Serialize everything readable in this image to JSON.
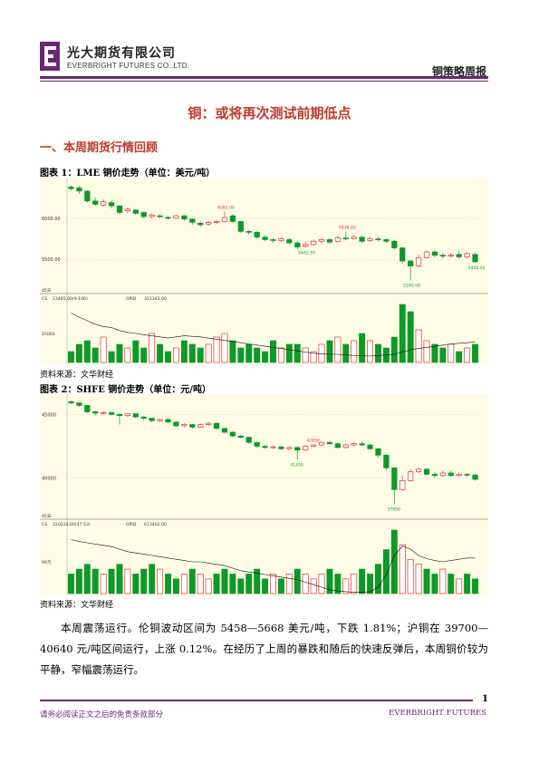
{
  "header": {
    "brand_cn": "光大期货有限公司",
    "brand_en": "EVERBRIGHT FUTURES CO.,LTD.",
    "report_name": "铜策略周报",
    "logo_letter": "E"
  },
  "title": "铜：或将再次测试前期低点",
  "section_heading": "一、本周期货行情回顾",
  "figure1": {
    "title": "图表 1：LME 铜价走势（单位：美元/吨）",
    "source": "资料来源：文华财经"
  },
  "figure2": {
    "title": "图表 2：SHFE 铜价走势（单位：元/吨）",
    "source": "资料来源：文华财经"
  },
  "chart_data": [
    {
      "type": "candlestick",
      "y_ticks": [
        6000.0,
        5500.0
      ],
      "ylim": [
        5150,
        6450
      ],
      "annotations": [
        {
          "label": "6083.00",
          "value": 6083
        },
        {
          "label": "5642.55",
          "value": 5642.55
        },
        {
          "label": "5838.00",
          "value": 5838
        },
        {
          "label": "5245.00",
          "value": 5245
        },
        {
          "label": "5458.00",
          "value": 5458
        }
      ],
      "candles": [
        [
          6380,
          6360,
          6400,
          6340
        ],
        [
          6370,
          6330,
          6390,
          6300
        ],
        [
          6330,
          6210,
          6340,
          6190
        ],
        [
          6210,
          6170,
          6250,
          6150
        ],
        [
          6160,
          6200,
          6230,
          6140
        ],
        [
          6190,
          6150,
          6220,
          6120
        ],
        [
          6150,
          6070,
          6160,
          6050
        ],
        [
          6090,
          6110,
          6130,
          6060
        ],
        [
          6100,
          6060,
          6110,
          6040
        ],
        [
          6070,
          6020,
          6080,
          6000
        ],
        [
          6020,
          6040,
          6060,
          6000
        ],
        [
          6030,
          6020,
          6050,
          6000
        ],
        [
          6010,
          6000,
          6030,
          5980
        ],
        [
          6000,
          6030,
          6040,
          5990
        ],
        [
          6030,
          5990,
          6040,
          5970
        ],
        [
          5990,
          5950,
          6000,
          5920
        ],
        [
          5940,
          5920,
          5960,
          5900
        ],
        [
          5930,
          5950,
          5970,
          5910
        ],
        [
          5950,
          5960,
          5980,
          5930
        ],
        [
          5960,
          6010,
          6083,
          5950
        ],
        [
          6030,
          5960,
          6050,
          5940
        ],
        [
          5960,
          5840,
          5970,
          5820
        ],
        [
          5840,
          5830,
          5860,
          5800
        ],
        [
          5830,
          5770,
          5840,
          5750
        ],
        [
          5770,
          5740,
          5790,
          5720
        ],
        [
          5740,
          5730,
          5760,
          5700
        ],
        [
          5730,
          5750,
          5770,
          5710
        ],
        [
          5740,
          5700,
          5760,
          5680
        ],
        [
          5700,
          5650,
          5720,
          5620
        ],
        [
          5660,
          5680,
          5720,
          5642.55
        ],
        [
          5680,
          5720,
          5740,
          5670
        ],
        [
          5720,
          5740,
          5760,
          5700
        ],
        [
          5740,
          5710,
          5760,
          5690
        ],
        [
          5720,
          5760,
          5790,
          5710
        ],
        [
          5760,
          5750,
          5838,
          5730
        ],
        [
          5750,
          5770,
          5800,
          5740
        ],
        [
          5770,
          5720,
          5790,
          5700
        ],
        [
          5730,
          5750,
          5770,
          5710
        ],
        [
          5750,
          5740,
          5770,
          5720
        ],
        [
          5740,
          5720,
          5760,
          5700
        ],
        [
          5720,
          5640,
          5740,
          5620
        ],
        [
          5640,
          5480,
          5650,
          5450
        ],
        [
          5480,
          5420,
          5500,
          5245
        ],
        [
          5420,
          5520,
          5560,
          5400
        ],
        [
          5520,
          5590,
          5610,
          5510
        ],
        [
          5590,
          5550,
          5610,
          5520
        ],
        [
          5550,
          5540,
          5580,
          5510
        ],
        [
          5540,
          5550,
          5580,
          5520
        ],
        [
          5560,
          5530,
          5600,
          5510
        ],
        [
          5530,
          5570,
          5590,
          5510
        ],
        [
          5560,
          5470,
          5580,
          5458
        ]
      ],
      "sub_labels": {
        "period": "45天",
        "cs": "CS",
        "cs_value": "13485.00(9:106)",
        "opid": "OPID",
        "opid_value": "311343.00"
      },
      "volume_tick": "25000",
      "volume": [
        0.3,
        0.5,
        0.6,
        0.4,
        0.7,
        0.3,
        0.5,
        0.4,
        0.6,
        0.4,
        0.8,
        0.5,
        0.3,
        0.4,
        0.6,
        0.5,
        0.4,
        0.5,
        0.7,
        0.8,
        0.6,
        0.4,
        0.5,
        0.4,
        0.3,
        0.6,
        0.4,
        0.5,
        0.5,
        0.4,
        0.3,
        0.5,
        0.6,
        0.7,
        0.5,
        0.6,
        0.8,
        0.6,
        0.5,
        0.4,
        0.7,
        1.6,
        1.4,
        0.9,
        0.6,
        0.5,
        0.4,
        0.5,
        0.3,
        0.4,
        0.5
      ],
      "oi_line": [
        0.85,
        0.78,
        0.72,
        0.66,
        0.62,
        0.6,
        0.55,
        0.52,
        0.5,
        0.48,
        0.46,
        0.44,
        0.42,
        0.44,
        0.46,
        0.45,
        0.44,
        0.42,
        0.4,
        0.38,
        0.36,
        0.34,
        0.32,
        0.3,
        0.28,
        0.26,
        0.24,
        0.22,
        0.2,
        0.18,
        0.16,
        0.15,
        0.14,
        0.14,
        0.13,
        0.12,
        0.12,
        0.11,
        0.12,
        0.13,
        0.14,
        0.18,
        0.22,
        0.24,
        0.26,
        0.28,
        0.3,
        0.32,
        0.33,
        0.34,
        0.35
      ]
    },
    {
      "type": "candlestick",
      "y_ticks": [
        45000,
        40000
      ],
      "ylim": [
        37200,
        46300
      ],
      "annotations": [
        {
          "label": "42650",
          "value": 42650
        },
        {
          "label": "41430",
          "value": 41430
        },
        {
          "label": "37950",
          "value": 37950
        }
      ],
      "candles": [
        [
          46000,
          45900,
          46100,
          45800
        ],
        [
          45900,
          45700,
          45950,
          45600
        ],
        [
          45700,
          45200,
          45750,
          45100
        ],
        [
          45200,
          45100,
          45300,
          44900
        ],
        [
          45100,
          45150,
          45250,
          45000
        ],
        [
          45150,
          45000,
          45200,
          44900
        ],
        [
          45000,
          44900,
          45100,
          44200
        ],
        [
          44900,
          45050,
          45100,
          44800
        ],
        [
          45050,
          44800,
          45100,
          44700
        ],
        [
          44800,
          44700,
          44850,
          44500
        ],
        [
          44700,
          44500,
          44750,
          44400
        ],
        [
          44500,
          44600,
          44650,
          44400
        ],
        [
          44600,
          44400,
          44700,
          44300
        ],
        [
          44400,
          44100,
          44450,
          44000
        ],
        [
          44100,
          44200,
          44300,
          44000
        ],
        [
          44200,
          44000,
          44250,
          43900
        ],
        [
          44000,
          44200,
          44300,
          43950
        ],
        [
          44200,
          44300,
          44400,
          44100
        ],
        [
          44300,
          43900,
          44350,
          43800
        ],
        [
          43900,
          43600,
          43950,
          43500
        ],
        [
          43600,
          43300,
          43650,
          43200
        ],
        [
          43300,
          43200,
          43400,
          43100
        ],
        [
          43200,
          42800,
          43250,
          42700
        ],
        [
          42800,
          42500,
          42850,
          42400
        ],
        [
          42500,
          42400,
          42600,
          42300
        ],
        [
          42400,
          42450,
          42550,
          42300
        ],
        [
          42450,
          42300,
          42550,
          42200
        ],
        [
          42300,
          42400,
          42500,
          42200
        ],
        [
          42400,
          42200,
          42500,
          41430
        ],
        [
          42200,
          42500,
          42600,
          42100
        ],
        [
          42500,
          42600,
          42650,
          42450
        ],
        [
          42600,
          42800,
          42900,
          42500
        ],
        [
          42800,
          42700,
          42900,
          42600
        ],
        [
          42700,
          42400,
          42800,
          42300
        ],
        [
          42400,
          42600,
          42700,
          42300
        ],
        [
          42600,
          42700,
          42800,
          42500
        ],
        [
          42700,
          42600,
          42850,
          42500
        ],
        [
          42600,
          42300,
          42700,
          42200
        ],
        [
          42300,
          41800,
          42400,
          41600
        ],
        [
          41800,
          40800,
          41900,
          40600
        ],
        [
          40800,
          39100,
          40900,
          37950
        ],
        [
          39100,
          39800,
          40200,
          39000
        ],
        [
          39800,
          40500,
          40700,
          39700
        ],
        [
          40500,
          40700,
          40800,
          40400
        ],
        [
          40700,
          40300,
          40800,
          40200
        ],
        [
          40300,
          40200,
          40500,
          40000
        ],
        [
          40200,
          40400,
          40600,
          40100
        ],
        [
          40400,
          40200,
          40600,
          40100
        ],
        [
          40200,
          40300,
          40500,
          40100
        ],
        [
          40300,
          40250,
          40400,
          40100
        ],
        [
          40250,
          39900,
          40300,
          39800
        ]
      ],
      "sub_labels": {
        "period": "45天",
        "cs": "CS",
        "cs_value": "220224.00(47:53)",
        "opid": "OPID",
        "opid_value": "613402.00"
      },
      "volume_tick": "99万",
      "volume": [
        0.4,
        0.5,
        0.6,
        0.5,
        0.4,
        0.5,
        0.6,
        0.5,
        0.4,
        0.5,
        0.6,
        0.5,
        0.4,
        0.3,
        0.4,
        0.5,
        0.4,
        0.3,
        0.4,
        0.5,
        0.4,
        0.3,
        0.4,
        0.5,
        0.3,
        0.4,
        0.3,
        0.4,
        0.5,
        0.4,
        0.3,
        0.4,
        0.5,
        0.4,
        0.3,
        0.4,
        0.5,
        0.4,
        0.6,
        0.9,
        1.3,
        1.0,
        0.7,
        0.6,
        0.5,
        0.4,
        0.5,
        0.4,
        0.3,
        0.4,
        0.3
      ],
      "oi_line": [
        0.85,
        0.82,
        0.8,
        0.78,
        0.76,
        0.74,
        0.7,
        0.66,
        0.64,
        0.62,
        0.6,
        0.58,
        0.56,
        0.54,
        0.52,
        0.5,
        0.5,
        0.48,
        0.46,
        0.44,
        0.4,
        0.36,
        0.34,
        0.32,
        0.3,
        0.28,
        0.26,
        0.24,
        0.22,
        0.18,
        0.14,
        0.1,
        0.06,
        0.04,
        0.03,
        0.02,
        0.02,
        0.03,
        0.1,
        0.3,
        0.6,
        0.75,
        0.7,
        0.6,
        0.55,
        0.52,
        0.5,
        0.52,
        0.54,
        0.56,
        0.56
      ]
    }
  ],
  "body_text": "本周震荡运行。伦铜波动区间为 5458—5668 美元/吨，下跌 1.81%；沪铜在 39700—40640 元/吨区间运行，上涨 0.12%。在经历了上周的暴跌和随后的快速反弹后，本周铜价较为平静，窄幅震荡运行。",
  "footer": {
    "page_number": "1",
    "disclaimer": "请务必阅读正文之后的免责条款部分",
    "brand": "EVERBRIGHT FUTURES"
  },
  "colors": {
    "accent": "#6b2576",
    "title_red": "#c0392b",
    "chart_bg": "#fffde6",
    "up": "#e0303a",
    "down": "#0c9a28"
  }
}
